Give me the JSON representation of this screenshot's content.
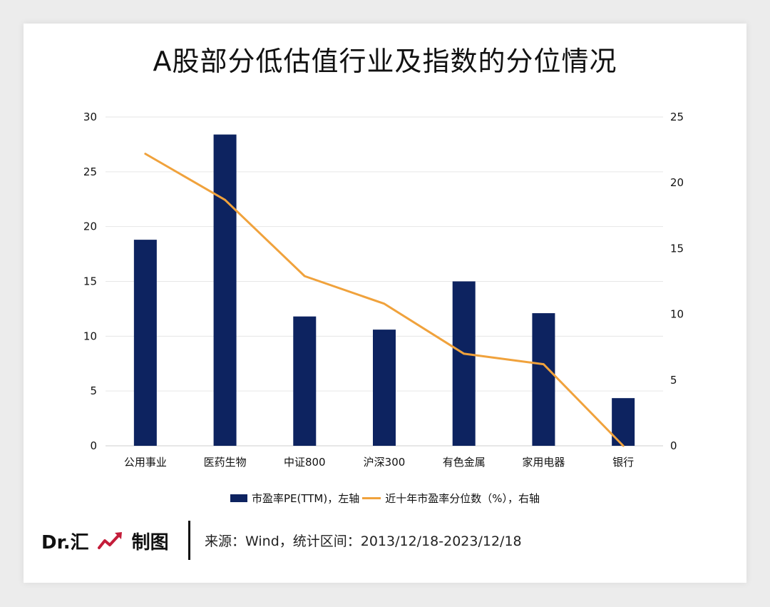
{
  "title": "A股部分低估值行业及指数的分位情况",
  "legend": {
    "bar_label": "市盈率PE(TTM)，左轴",
    "line_label": "近十年市盈率分位数（%），右轴"
  },
  "footer": {
    "brand": "Dr.汇",
    "made_by": "制图",
    "source": "来源：Wind，统计区间：2013/12/18-2023/12/18"
  },
  "colors": {
    "bar": "#0d2360",
    "line": "#f0a23c",
    "grid": "#e6e6e6",
    "brand_icon": "#c41d3a"
  },
  "chart_data": {
    "type": "bar",
    "categories": [
      "公用事业",
      "医药生物",
      "中证800",
      "沪深300",
      "有色金属",
      "家用电器",
      "银行"
    ],
    "series": [
      {
        "name": "市盈率PE(TTM)，左轴",
        "type": "bar",
        "axis": "left",
        "values": [
          18.8,
          28.4,
          11.8,
          10.6,
          15.0,
          12.1,
          4.35
        ]
      },
      {
        "name": "近十年市盈率分位数（%），右轴",
        "type": "line",
        "axis": "right",
        "values": [
          22.2,
          18.7,
          12.9,
          10.8,
          7.0,
          6.2,
          0.0
        ]
      }
    ],
    "y_left": {
      "min": 0,
      "max": 30,
      "ticks": [
        "0",
        "5",
        "10",
        "15",
        "20",
        "25",
        "30"
      ]
    },
    "y_right": {
      "min": 0,
      "max": 25,
      "ticks": [
        "0",
        "5",
        "10",
        "15",
        "20",
        "25"
      ]
    },
    "grid": true,
    "legend_position": "bottom"
  }
}
